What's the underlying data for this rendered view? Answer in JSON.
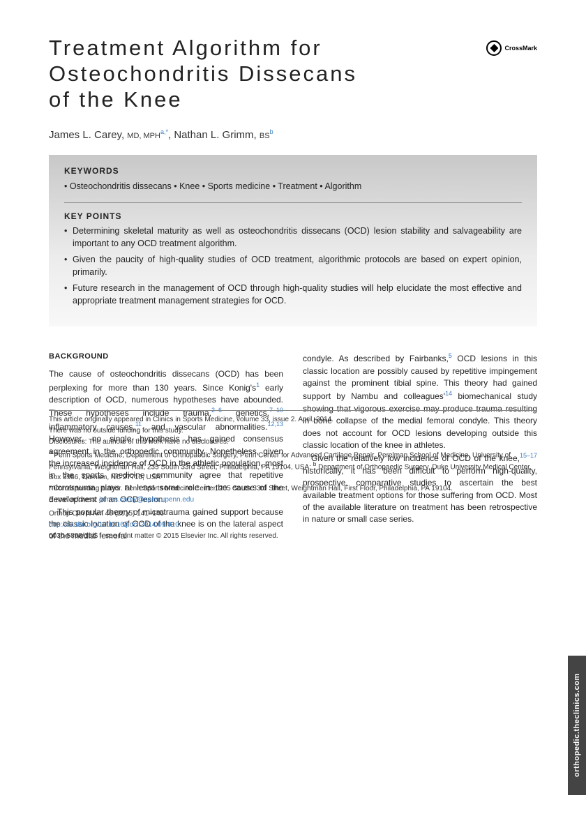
{
  "title": "Treatment Algorithm for Osteochondritis Dissecans of the Knee",
  "crossmark_label": "CrossMark",
  "authors": {
    "a1_name": "James L. Carey",
    "a1_cred": "MD, MPH",
    "a1_aff": "a,",
    "a1_ast": "*",
    "a2_name": "Nathan L. Grimm",
    "a2_cred": "BS",
    "a2_aff": "b"
  },
  "keywords": {
    "heading": "KEYWORDS",
    "line": "• Osteochondritis dissecans • Knee • Sports medicine • Treatment • Algorithm"
  },
  "keypoints": {
    "heading": "KEY POINTS",
    "items": [
      "Determining skeletal maturity as well as osteochondritis dissecans (OCD) lesion stability and salvageability are important to any OCD treatment algorithm.",
      "Given the paucity of high-quality studies of OCD treatment, algorithmic protocols are based on expert opinion, primarily.",
      "Future research in the management of OCD through high-quality studies will help elucidate the most effective and appropriate treatment management strategies for OCD."
    ]
  },
  "background": {
    "heading": "BACKGROUND",
    "col1_p1_a": "The cause of osteochondritis dissecans (OCD) has been perplexing for more than 130 years. Since Konig's",
    "col1_p1_b": " early description of OCD, numerous hypotheses have abounded. These hypotheses include trauma,",
    "col1_p1_c": " genetics,",
    "col1_p1_d": " inflammatory causes,",
    "col1_p1_e": " and vascular abnormalities.",
    "col1_p1_f": " However, no single hypothesis has gained consensus agreement in the orthopedic community. Nonetheless, given the increased incidence of OCD in the athletic population, most in the sports medicine community agree that repetitive microtrauma plays at least some role in the cause of the development of an OCD lesion.",
    "col1_p2": "This popular theory of microtrauma gained support because the classic location of OCD of the knee is on the lateral aspect of the medial femoral",
    "col2_p1_a": "condyle. As described by Fairbanks,",
    "col2_p1_b": " OCD lesions in this classic location are possibly caused by repetitive impingement against the prominent tibial spine. This theory had gained support by Nambu and colleagues'",
    "col2_p1_c": " biomechanical study showing that vigorous exercise may produce trauma resulting in bone collapse of the medial femoral condyle. This theory does not account for OCD lesions developing outside this classic location of the knee in athletes.",
    "col2_p2_a": "Given the relatively low incidence of OCD of the knee,",
    "col2_p2_b": " historically, it has been difficult to perform high-quality, prospective, comparative studies to ascertain the best available treatment options for those suffering from OCD. Most of the available literature on treatment has been retrospective in nature or small case series.",
    "refs": {
      "r1": "1",
      "r2_6": "2–6",
      "r7_10": "7–10",
      "r11": "11",
      "r12_13": "12,13",
      "r5": "5",
      "r14": "14",
      "r15_17": "15–17"
    }
  },
  "footer": {
    "l1": "This article originally appeared in Clinics in Sports Medicine, volume 33, issue 2. April, 2014.",
    "l2": "There was no outside funding for this study.",
    "l3": "Disclosures: The authors of this work have no disclosures.",
    "aff_a_sup": "a",
    "aff_a": " Penn Sports Medicine, Department of Orthopaedic Surgery, Penn Center for Advanced Cartilage Repair, Perelman School of Medicine, University of Pennsylvania, Weightman Hall, 235 South 33rd Street, Philadelphia, PA 19104, USA; ",
    "aff_b_sup": "b",
    "aff_b": " Department of Orthopaedic Surgery, Duke University Medical Center, Box 3956, Durham, NC 27710, USA",
    "corr_label": "* Corresponding author. Penn Sports Medicine Center, 235 South 33rd Street, Weightman Hall, First Floor, Philadelphia, PA 19104.",
    "email_label": "E-mail address: ",
    "email": "james.carey@uphs.upenn.edu",
    "journal": "Orthop Clin N Am 46 (2015) 141–146",
    "doi": "http://dx.doi.org/10.1016/j.ocl.2014.09.010",
    "issn": "0030-5898/15/$ – see front matter © 2015 Elsevier Inc. All rights reserved."
  },
  "side_tab": "orthopedic.theclinics.com",
  "colors": {
    "link": "#3b7bbf",
    "gradient_top": "#c8c8c8",
    "gradient_bottom": "#f8f8f8",
    "text": "#222222"
  },
  "typography": {
    "title_fontsize": 31,
    "title_letterspacing": 3,
    "body_fontsize": 12,
    "footer_fontsize": 10
  }
}
